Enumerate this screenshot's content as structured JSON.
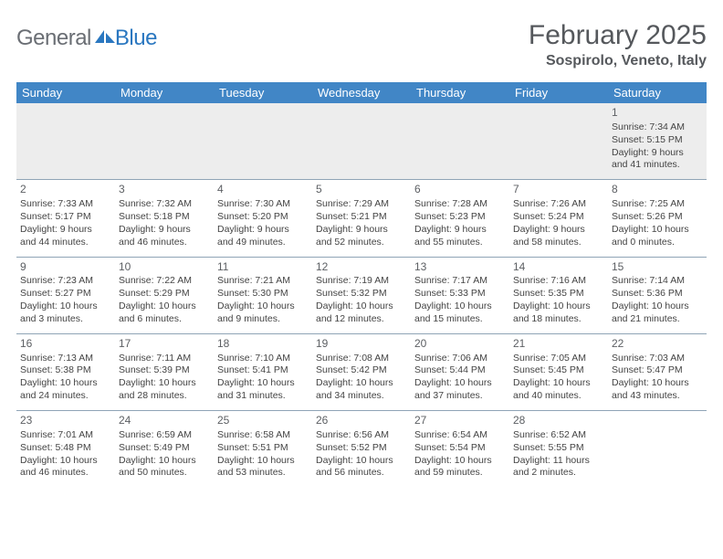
{
  "logo": {
    "gray_text": "General",
    "blue_text": "Blue"
  },
  "title": "February 2025",
  "location": "Sospirolo, Veneto, Italy",
  "colors": {
    "header_bg": "#4186c6",
    "header_text": "#ffffff",
    "divider": "#8fa4b6",
    "logo_gray": "#6a6e74",
    "logo_blue": "#2a77c0",
    "title_color": "#55585c",
    "first_row_bg": "#ededed"
  },
  "day_names": [
    "Sunday",
    "Monday",
    "Tuesday",
    "Wednesday",
    "Thursday",
    "Friday",
    "Saturday"
  ],
  "weeks": [
    [
      {
        "blank": true
      },
      {
        "blank": true
      },
      {
        "blank": true
      },
      {
        "blank": true
      },
      {
        "blank": true
      },
      {
        "blank": true
      },
      {
        "n": "1",
        "sunrise": "Sunrise: 7:34 AM",
        "sunset": "Sunset: 5:15 PM",
        "day1": "Daylight: 9 hours",
        "day2": "and 41 minutes."
      }
    ],
    [
      {
        "n": "2",
        "sunrise": "Sunrise: 7:33 AM",
        "sunset": "Sunset: 5:17 PM",
        "day1": "Daylight: 9 hours",
        "day2": "and 44 minutes."
      },
      {
        "n": "3",
        "sunrise": "Sunrise: 7:32 AM",
        "sunset": "Sunset: 5:18 PM",
        "day1": "Daylight: 9 hours",
        "day2": "and 46 minutes."
      },
      {
        "n": "4",
        "sunrise": "Sunrise: 7:30 AM",
        "sunset": "Sunset: 5:20 PM",
        "day1": "Daylight: 9 hours",
        "day2": "and 49 minutes."
      },
      {
        "n": "5",
        "sunrise": "Sunrise: 7:29 AM",
        "sunset": "Sunset: 5:21 PM",
        "day1": "Daylight: 9 hours",
        "day2": "and 52 minutes."
      },
      {
        "n": "6",
        "sunrise": "Sunrise: 7:28 AM",
        "sunset": "Sunset: 5:23 PM",
        "day1": "Daylight: 9 hours",
        "day2": "and 55 minutes."
      },
      {
        "n": "7",
        "sunrise": "Sunrise: 7:26 AM",
        "sunset": "Sunset: 5:24 PM",
        "day1": "Daylight: 9 hours",
        "day2": "and 58 minutes."
      },
      {
        "n": "8",
        "sunrise": "Sunrise: 7:25 AM",
        "sunset": "Sunset: 5:26 PM",
        "day1": "Daylight: 10 hours",
        "day2": "and 0 minutes."
      }
    ],
    [
      {
        "n": "9",
        "sunrise": "Sunrise: 7:23 AM",
        "sunset": "Sunset: 5:27 PM",
        "day1": "Daylight: 10 hours",
        "day2": "and 3 minutes."
      },
      {
        "n": "10",
        "sunrise": "Sunrise: 7:22 AM",
        "sunset": "Sunset: 5:29 PM",
        "day1": "Daylight: 10 hours",
        "day2": "and 6 minutes."
      },
      {
        "n": "11",
        "sunrise": "Sunrise: 7:21 AM",
        "sunset": "Sunset: 5:30 PM",
        "day1": "Daylight: 10 hours",
        "day2": "and 9 minutes."
      },
      {
        "n": "12",
        "sunrise": "Sunrise: 7:19 AM",
        "sunset": "Sunset: 5:32 PM",
        "day1": "Daylight: 10 hours",
        "day2": "and 12 minutes."
      },
      {
        "n": "13",
        "sunrise": "Sunrise: 7:17 AM",
        "sunset": "Sunset: 5:33 PM",
        "day1": "Daylight: 10 hours",
        "day2": "and 15 minutes."
      },
      {
        "n": "14",
        "sunrise": "Sunrise: 7:16 AM",
        "sunset": "Sunset: 5:35 PM",
        "day1": "Daylight: 10 hours",
        "day2": "and 18 minutes."
      },
      {
        "n": "15",
        "sunrise": "Sunrise: 7:14 AM",
        "sunset": "Sunset: 5:36 PM",
        "day1": "Daylight: 10 hours",
        "day2": "and 21 minutes."
      }
    ],
    [
      {
        "n": "16",
        "sunrise": "Sunrise: 7:13 AM",
        "sunset": "Sunset: 5:38 PM",
        "day1": "Daylight: 10 hours",
        "day2": "and 24 minutes."
      },
      {
        "n": "17",
        "sunrise": "Sunrise: 7:11 AM",
        "sunset": "Sunset: 5:39 PM",
        "day1": "Daylight: 10 hours",
        "day2": "and 28 minutes."
      },
      {
        "n": "18",
        "sunrise": "Sunrise: 7:10 AM",
        "sunset": "Sunset: 5:41 PM",
        "day1": "Daylight: 10 hours",
        "day2": "and 31 minutes."
      },
      {
        "n": "19",
        "sunrise": "Sunrise: 7:08 AM",
        "sunset": "Sunset: 5:42 PM",
        "day1": "Daylight: 10 hours",
        "day2": "and 34 minutes."
      },
      {
        "n": "20",
        "sunrise": "Sunrise: 7:06 AM",
        "sunset": "Sunset: 5:44 PM",
        "day1": "Daylight: 10 hours",
        "day2": "and 37 minutes."
      },
      {
        "n": "21",
        "sunrise": "Sunrise: 7:05 AM",
        "sunset": "Sunset: 5:45 PM",
        "day1": "Daylight: 10 hours",
        "day2": "and 40 minutes."
      },
      {
        "n": "22",
        "sunrise": "Sunrise: 7:03 AM",
        "sunset": "Sunset: 5:47 PM",
        "day1": "Daylight: 10 hours",
        "day2": "and 43 minutes."
      }
    ],
    [
      {
        "n": "23",
        "sunrise": "Sunrise: 7:01 AM",
        "sunset": "Sunset: 5:48 PM",
        "day1": "Daylight: 10 hours",
        "day2": "and 46 minutes."
      },
      {
        "n": "24",
        "sunrise": "Sunrise: 6:59 AM",
        "sunset": "Sunset: 5:49 PM",
        "day1": "Daylight: 10 hours",
        "day2": "and 50 minutes."
      },
      {
        "n": "25",
        "sunrise": "Sunrise: 6:58 AM",
        "sunset": "Sunset: 5:51 PM",
        "day1": "Daylight: 10 hours",
        "day2": "and 53 minutes."
      },
      {
        "n": "26",
        "sunrise": "Sunrise: 6:56 AM",
        "sunset": "Sunset: 5:52 PM",
        "day1": "Daylight: 10 hours",
        "day2": "and 56 minutes."
      },
      {
        "n": "27",
        "sunrise": "Sunrise: 6:54 AM",
        "sunset": "Sunset: 5:54 PM",
        "day1": "Daylight: 10 hours",
        "day2": "and 59 minutes."
      },
      {
        "n": "28",
        "sunrise": "Sunrise: 6:52 AM",
        "sunset": "Sunset: 5:55 PM",
        "day1": "Daylight: 11 hours",
        "day2": "and 2 minutes."
      },
      {
        "blank": true
      }
    ]
  ]
}
